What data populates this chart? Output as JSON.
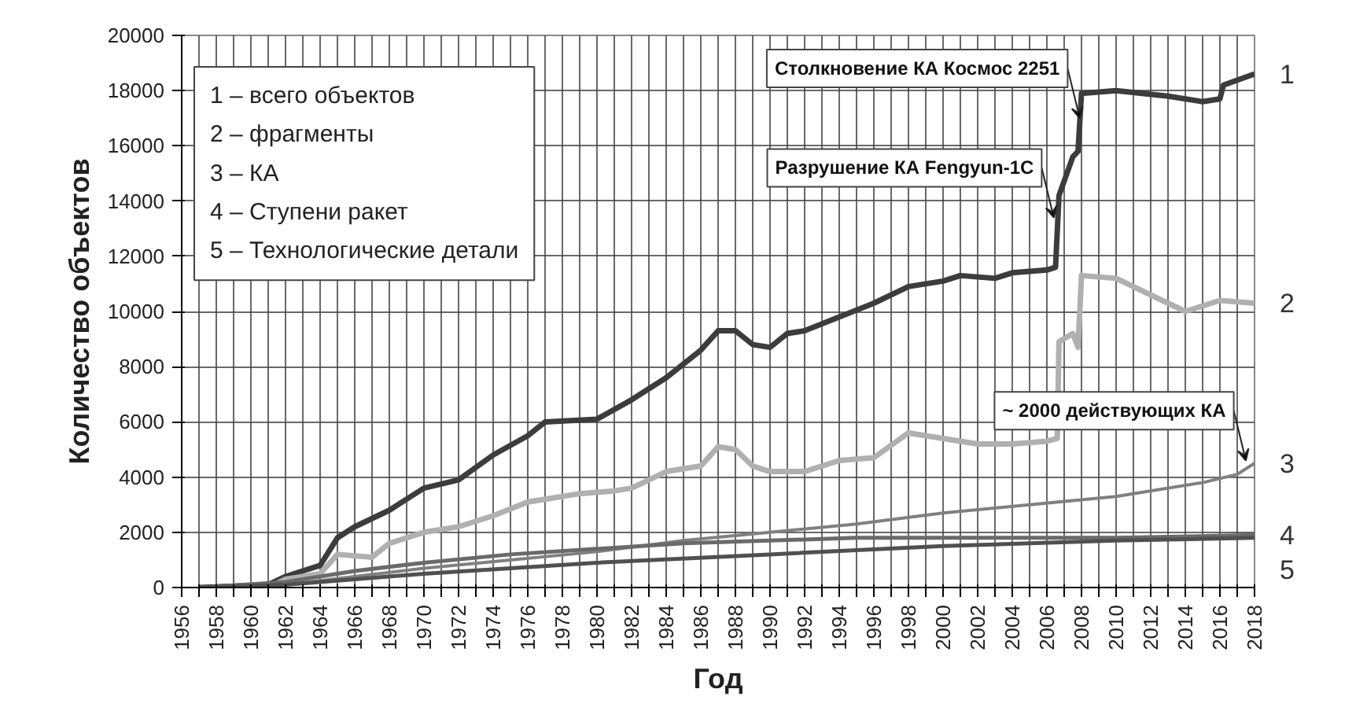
{
  "chart_data": {
    "type": "line",
    "xlabel": "Год",
    "ylabel": "Количество объектов",
    "xlim": [
      1956,
      2018
    ],
    "ylim": [
      0,
      20000
    ],
    "xticks": [
      1956,
      {
        "value": 1957,
        "label": null
      },
      1958,
      {
        "value": 1959,
        "label": null
      },
      1960,
      {
        "value": 1961,
        "label": null
      },
      1962,
      {
        "value": 1963,
        "label": null
      },
      1964,
      {
        "value": 1965,
        "label": null
      },
      1966,
      {
        "value": 1967,
        "label": null
      },
      1968,
      {
        "value": 1969,
        "label": null
      },
      1970,
      {
        "value": 1971,
        "label": null
      },
      1972,
      {
        "value": 1973,
        "label": null
      },
      1974,
      {
        "value": 1975,
        "label": null
      },
      1976,
      {
        "value": 1977,
        "label": null
      },
      1978,
      {
        "value": 1979,
        "label": null
      },
      1980,
      {
        "value": 1981,
        "label": null
      },
      1982,
      {
        "value": 1983,
        "label": null
      },
      1984,
      {
        "value": 1985,
        "label": null
      },
      1986,
      {
        "value": 1987,
        "label": null
      },
      1988,
      {
        "value": 1989,
        "label": null
      },
      1990,
      {
        "value": 1991,
        "label": null
      },
      1992,
      {
        "value": 1993,
        "label": null
      },
      1994,
      {
        "value": 1995,
        "label": null
      },
      1996,
      {
        "value": 1997,
        "label": null
      },
      1998,
      {
        "value": 1999,
        "label": null
      },
      2000,
      {
        "value": 2001,
        "label": null
      },
      2002,
      {
        "value": 2003,
        "label": null
      },
      2004,
      {
        "value": 2005,
        "label": null
      },
      2006,
      {
        "value": 2007,
        "label": null
      },
      2008,
      {
        "value": 2009,
        "label": null
      },
      2010,
      {
        "value": 2011,
        "label": null
      },
      2012,
      {
        "value": 2013,
        "label": null
      },
      2014,
      {
        "value": 2015,
        "label": null
      },
      2016,
      {
        "value": 2017,
        "label": null
      },
      2018
    ],
    "yticks": [
      0,
      2000,
      4000,
      6000,
      8000,
      10000,
      12000,
      14000,
      16000,
      18000,
      20000
    ],
    "grid": true,
    "marker": "none",
    "line_style": "solid",
    "series": [
      {
        "name": "1",
        "color": "#3c3c3c",
        "x": [
          1957,
          1961,
          1962,
          1964,
          1965,
          1966,
          1968,
          1970,
          1972,
          1974,
          1976,
          1977,
          1980,
          1982,
          1984,
          1986,
          1987,
          1988,
          1989,
          1990,
          1991,
          1992,
          1994,
          1996,
          1998,
          2000,
          2001,
          2003,
          2004,
          2006,
          2006.5,
          2006.7,
          2007.5,
          2007.8,
          2008,
          2010,
          2013,
          2015,
          2016,
          2016.2,
          2018
        ],
        "values": [
          0,
          100,
          400,
          800,
          1800,
          2200,
          2800,
          3600,
          3900,
          4800,
          5500,
          6000,
          6100,
          6800,
          7600,
          8600,
          9300,
          9300,
          8800,
          8700,
          9200,
          9300,
          9800,
          10300,
          10900,
          11100,
          11300,
          11200,
          11400,
          11500,
          11600,
          14200,
          15600,
          15800,
          17900,
          18000,
          17800,
          17600,
          17700,
          18200,
          18600
        ]
      },
      {
        "name": "2",
        "color": "#b0b0b0",
        "x": [
          1961,
          1962,
          1964,
          1965,
          1967,
          1968,
          1970,
          1972,
          1974,
          1976,
          1977,
          1979,
          1981,
          1982,
          1984,
          1986,
          1987,
          1988,
          1989,
          1990,
          1992,
          1994,
          1996,
          1998,
          2000,
          2002,
          2004,
          2006,
          2006.6,
          2006.7,
          2007.5,
          2007.8,
          2008,
          2010,
          2014,
          2016,
          2018
        ],
        "values": [
          0,
          300,
          500,
          1200,
          1100,
          1600,
          2000,
          2200,
          2600,
          3100,
          3200,
          3400,
          3500,
          3600,
          4200,
          4400,
          5100,
          5000,
          4400,
          4200,
          4200,
          4600,
          4700,
          5600,
          5400,
          5200,
          5200,
          5300,
          5400,
          8900,
          9200,
          8700,
          11300,
          11200,
          10000,
          10400,
          10300
        ]
      },
      {
        "name": "3",
        "color": "#808080",
        "x": [
          1957,
          1962,
          1966,
          1970,
          1975,
          1980,
          1985,
          1990,
          1995,
          2000,
          2005,
          2010,
          2015,
          2017,
          2018
        ],
        "values": [
          0,
          100,
          400,
          700,
          1000,
          1300,
          1700,
          2000,
          2300,
          2700,
          3000,
          3300,
          3800,
          4100,
          4500
        ]
      },
      {
        "name": "4",
        "color": "#6a6a6a",
        "x": [
          1957,
          1962,
          1966,
          1970,
          1975,
          1980,
          1985,
          1990,
          1995,
          2000,
          2010,
          2018
        ],
        "values": [
          0,
          200,
          600,
          900,
          1200,
          1400,
          1600,
          1700,
          1800,
          1800,
          1800,
          1900
        ]
      },
      {
        "name": "5",
        "color": "#505050",
        "x": [
          1957,
          1962,
          1966,
          1970,
          1975,
          1980,
          1990,
          2000,
          2010,
          2018
        ],
        "values": [
          0,
          100,
          300,
          500,
          700,
          900,
          1200,
          1500,
          1700,
          1800
        ]
      }
    ],
    "annotations": [
      "1 – всего объектов",
      "2 – фрагменты",
      "3 –  КА",
      "4 – Ступени ракет",
      "5 – Технологические детали",
      {
        "text": "Столкновение КА Космос 2251",
        "x": 2007.9,
        "y": 17000
      },
      {
        "text": "Разрушение КА Fengyun-1C",
        "x": 2006.4,
        "y": 13400
      },
      {
        "text": "~ 2000 действующих КА",
        "x": 2017.5,
        "y": 4600
      }
    ]
  }
}
